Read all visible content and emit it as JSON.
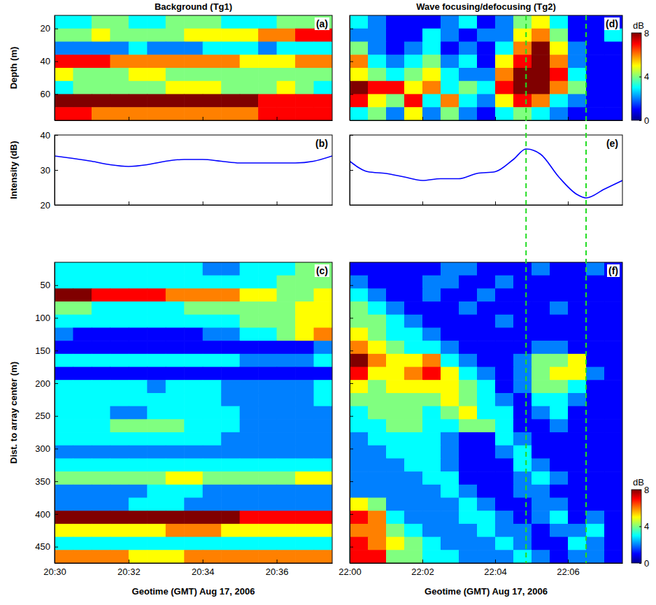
{
  "chart_data": [
    {
      "type": "heatmap",
      "title": "Background (Tg1)",
      "panel_label": "(a)",
      "ylabel": "Depth (m)",
      "x": [
        1230.25,
        1230.75,
        1231.25,
        1231.75,
        1232.25,
        1232.75,
        1233.25,
        1233.75,
        1234.25,
        1234.75,
        1235.25,
        1235.75,
        1236.25,
        1236.75,
        1237.25
      ],
      "y": [
        16,
        24,
        32,
        40,
        48,
        56,
        64,
        72
      ],
      "z": [
        [
          3,
          3,
          4,
          4,
          3,
          3,
          4,
          4,
          4,
          3,
          3,
          3,
          4,
          4,
          4
        ],
        [
          4,
          4,
          5,
          4,
          4,
          4,
          4,
          5,
          5,
          5,
          5,
          6,
          6,
          7,
          7
        ],
        [
          2,
          2,
          2,
          2,
          3,
          2,
          2,
          2,
          3,
          3,
          3,
          2,
          3,
          3,
          3
        ],
        [
          7,
          7,
          7,
          6,
          6,
          6,
          6,
          6,
          6,
          6,
          5,
          5,
          5,
          6,
          6
        ],
        [
          5,
          4,
          4,
          4,
          5,
          5,
          4,
          4,
          4,
          4,
          4,
          4,
          4,
          4,
          4
        ],
        [
          3,
          4,
          4,
          4,
          4,
          4,
          5,
          5,
          5,
          4,
          4,
          4,
          5,
          4,
          3
        ],
        [
          8,
          8,
          8,
          8,
          8,
          8,
          8,
          8,
          8,
          8,
          8,
          7,
          7,
          7,
          7
        ],
        [
          7,
          7,
          6,
          6,
          6,
          6,
          6,
          6,
          6,
          6,
          6,
          7,
          7,
          7,
          7
        ]
      ],
      "zlim": [
        0,
        8
      ],
      "xlim": [
        1230,
        1237.5
      ],
      "xticks": [
        1230,
        1232,
        1234,
        1236
      ],
      "ylim": [
        76,
        12
      ],
      "yticks": [
        20,
        40,
        60
      ],
      "tick_labels": "y"
    },
    {
      "type": "line",
      "panel_label": "(b)",
      "ylabel": "Intensity (dB)",
      "color": "#0000ff",
      "x": [
        1230,
        1230.5,
        1231,
        1231.5,
        1232,
        1232.5,
        1233,
        1233.5,
        1234,
        1234.5,
        1235,
        1235.5,
        1236,
        1236.5,
        1237,
        1237.5
      ],
      "values": [
        34,
        33.3,
        32.5,
        31.5,
        31,
        31.5,
        32.5,
        33,
        33,
        32.5,
        32,
        32,
        32,
        32,
        32.5,
        34
      ],
      "xlim": [
        1230,
        1237.5
      ],
      "xticks": [
        1230,
        1232,
        1234,
        1236
      ],
      "ylim": [
        20,
        40
      ],
      "yticks": [
        20,
        30,
        40
      ],
      "tick_labels": "y"
    },
    {
      "type": "heatmap",
      "panel_label": "(c)",
      "ylabel": "Dist. to array center (m)",
      "xlabel": "Geotime (GMT) Aug 17, 2006",
      "x": [
        1230.25,
        1230.75,
        1231.25,
        1231.75,
        1232.25,
        1232.75,
        1233.25,
        1233.75,
        1234.25,
        1234.75,
        1235.25,
        1235.75,
        1236.25,
        1236.75,
        1237.25
      ],
      "y": [
        25,
        45,
        65,
        85,
        105,
        125,
        145,
        165,
        185,
        205,
        225,
        245,
        265,
        285,
        305,
        325,
        345,
        365,
        385,
        405,
        425,
        445,
        465
      ],
      "z": [
        [
          3,
          3,
          3,
          3,
          3,
          3,
          3,
          3,
          2,
          2,
          3,
          3,
          3,
          4,
          4
        ],
        [
          3,
          3,
          3,
          3,
          3,
          3,
          3,
          3,
          3,
          3,
          3,
          3,
          4,
          4,
          4
        ],
        [
          8,
          8,
          7,
          7,
          7,
          7,
          6,
          6,
          6,
          6,
          5,
          5,
          4,
          4,
          5
        ],
        [
          4,
          4,
          3,
          3,
          3,
          3,
          3,
          4,
          4,
          4,
          4,
          4,
          4,
          5,
          5
        ],
        [
          3,
          3,
          3,
          3,
          3,
          3,
          3,
          3,
          3,
          3,
          4,
          4,
          4,
          5,
          5
        ],
        [
          2,
          1,
          1,
          1,
          1,
          1,
          1,
          1,
          2,
          2,
          3,
          3,
          4,
          5,
          6
        ],
        [
          1,
          1,
          1,
          1,
          1,
          1,
          1,
          1,
          1,
          1,
          1,
          1,
          1,
          1,
          2
        ],
        [
          3,
          3,
          3,
          3,
          3,
          3,
          3,
          3,
          3,
          3,
          2,
          2,
          2,
          2,
          3
        ],
        [
          1,
          1,
          1,
          1,
          1,
          1,
          1,
          1,
          1,
          1,
          1,
          1,
          1,
          1,
          1
        ],
        [
          3,
          3,
          3,
          3,
          3,
          2,
          3,
          3,
          3,
          2,
          2,
          2,
          2,
          2,
          3
        ],
        [
          3,
          3,
          3,
          3,
          3,
          3,
          3,
          3,
          3,
          2,
          2,
          2,
          2,
          2,
          3
        ],
        [
          3,
          3,
          3,
          2,
          2,
          3,
          3,
          3,
          3,
          3,
          2,
          2,
          2,
          2,
          2
        ],
        [
          3,
          3,
          3,
          4,
          4,
          4,
          4,
          3,
          3,
          3,
          2,
          2,
          2,
          2,
          2
        ],
        [
          3,
          3,
          3,
          3,
          3,
          3,
          3,
          3,
          3,
          2,
          2,
          2,
          2,
          2,
          2
        ],
        [
          2,
          2,
          2,
          2,
          2,
          2,
          2,
          2,
          2,
          2,
          2,
          2,
          2,
          2,
          2
        ],
        [
          3,
          3,
          3,
          3,
          3,
          3,
          3,
          3,
          3,
          3,
          3,
          3,
          3,
          3,
          3
        ],
        [
          4,
          4,
          4,
          4,
          4,
          4,
          5,
          5,
          4,
          4,
          4,
          4,
          4,
          5,
          5
        ],
        [
          2,
          2,
          2,
          2,
          2,
          3,
          3,
          3,
          2,
          2,
          2,
          2,
          2,
          2,
          2
        ],
        [
          2,
          2,
          2,
          2,
          3,
          3,
          3,
          2,
          2,
          2,
          2,
          2,
          2,
          2,
          2
        ],
        [
          8,
          8,
          8,
          8,
          8,
          8,
          8,
          8,
          8,
          8,
          7,
          7,
          7,
          7,
          7
        ],
        [
          5,
          5,
          5,
          5,
          5,
          5,
          6,
          6,
          6,
          5,
          5,
          5,
          5,
          5,
          5
        ],
        [
          3,
          3,
          3,
          3,
          3,
          3,
          3,
          3,
          3,
          3,
          3,
          3,
          3,
          3,
          3
        ],
        [
          6,
          6,
          6,
          6,
          5,
          5,
          5,
          6,
          6,
          6,
          6,
          6,
          6,
          6,
          6
        ]
      ],
      "zlim": [
        0,
        8
      ],
      "xlim": [
        1230,
        1237.5
      ],
      "xticks": [
        {
          "value": 1230,
          "label": "20:30"
        },
        {
          "value": 1232,
          "label": "20:32"
        },
        {
          "value": 1234,
          "label": "20:34"
        },
        {
          "value": 1236,
          "label": "20:36"
        }
      ],
      "ylim": [
        475,
        15
      ],
      "yticks": [
        50,
        100,
        150,
        200,
        250,
        300,
        350,
        400,
        450
      ],
      "tick_labels": true
    },
    {
      "type": "heatmap",
      "title": "Wave focusing/defocusing (Tg2)",
      "panel_label": "(d)",
      "x": [
        1320.25,
        1320.75,
        1321.25,
        1321.75,
        1322.25,
        1322.75,
        1323.25,
        1323.75,
        1324.25,
        1324.75,
        1325.25,
        1325.75,
        1326.25,
        1326.75,
        1327.25
      ],
      "y": [
        16,
        24,
        32,
        40,
        48,
        56,
        64,
        72
      ],
      "z": [
        [
          3,
          2,
          1,
          1,
          1,
          2,
          3,
          1,
          2,
          4,
          5,
          3,
          1,
          1,
          1
        ],
        [
          2,
          2,
          1,
          1,
          3,
          2,
          1,
          2,
          2,
          5,
          6,
          4,
          1,
          1,
          3
        ],
        [
          4,
          2,
          1,
          2,
          3,
          1,
          2,
          1,
          3,
          6,
          8,
          5,
          2,
          1,
          1
        ],
        [
          6,
          3,
          2,
          3,
          4,
          2,
          3,
          1,
          5,
          7,
          8,
          6,
          2,
          1,
          1
        ],
        [
          5,
          4,
          3,
          4,
          5,
          3,
          2,
          2,
          6,
          8,
          8,
          7,
          3,
          1,
          1
        ],
        [
          8,
          7,
          7,
          5,
          6,
          3,
          4,
          3,
          7,
          8,
          8,
          6,
          4,
          1,
          1
        ],
        [
          7,
          5,
          4,
          7,
          3,
          6,
          3,
          2,
          5,
          7,
          6,
          3,
          2,
          1,
          1
        ],
        [
          3,
          4,
          2,
          5,
          2,
          4,
          2,
          1,
          3,
          4,
          3,
          2,
          1,
          1,
          1
        ]
      ],
      "zlim": [
        0,
        8
      ],
      "colorbar": {
        "label": "dB",
        "ticks": [
          0,
          4,
          8
        ]
      },
      "xlim": [
        1320,
        1327.5
      ],
      "xticks": [
        1320,
        1322,
        1324,
        1326
      ],
      "ylim": [
        76,
        12
      ],
      "yticks": [
        20,
        40,
        60
      ],
      "tick_labels": false
    },
    {
      "type": "line",
      "panel_label": "(e)",
      "color": "#0000ff",
      "x": [
        1320,
        1320.5,
        1321,
        1321.5,
        1322,
        1322.5,
        1323,
        1323.5,
        1324,
        1324.5,
        1324.85,
        1325.25,
        1325.75,
        1326.25,
        1326.5,
        1327,
        1327.5
      ],
      "values": [
        32.5,
        29.5,
        29,
        28,
        27,
        27.5,
        27.5,
        29,
        29.5,
        33,
        36,
        34.5,
        28,
        23,
        22,
        24.5,
        27
      ],
      "vlines": [
        1324.85,
        1326.5
      ],
      "xlim": [
        1320,
        1327.5
      ],
      "xticks": [
        1320,
        1322,
        1324,
        1326
      ],
      "ylim": [
        20,
        40
      ],
      "yticks": [
        20,
        30,
        40
      ],
      "tick_labels": false
    },
    {
      "type": "heatmap",
      "panel_label": "(f)",
      "xlabel": "Geotime (GMT) Aug 17, 2006",
      "x": [
        1320.25,
        1320.75,
        1321.25,
        1321.75,
        1322.25,
        1322.75,
        1323.25,
        1323.75,
        1324.25,
        1324.75,
        1325.25,
        1325.75,
        1326.25,
        1326.75,
        1327.25
      ],
      "y": [
        25,
        45,
        65,
        85,
        105,
        125,
        145,
        165,
        185,
        205,
        225,
        245,
        265,
        285,
        305,
        325,
        345,
        365,
        385,
        405,
        425,
        445,
        465
      ],
      "z": [
        [
          1,
          1,
          1,
          1,
          1,
          2,
          2,
          1,
          1,
          1,
          2,
          1,
          1,
          2,
          1
        ],
        [
          2,
          1,
          1,
          1,
          2,
          2,
          1,
          1,
          2,
          1,
          1,
          1,
          1,
          1,
          1
        ],
        [
          3,
          2,
          1,
          1,
          2,
          1,
          1,
          2,
          1,
          1,
          1,
          1,
          1,
          1,
          1
        ],
        [
          4,
          3,
          2,
          1,
          1,
          1,
          2,
          1,
          1,
          1,
          1,
          2,
          1,
          1,
          1
        ],
        [
          4,
          4,
          3,
          2,
          1,
          1,
          1,
          1,
          2,
          1,
          1,
          1,
          1,
          1,
          1
        ],
        [
          5,
          4,
          3,
          3,
          2,
          1,
          1,
          1,
          1,
          1,
          1,
          1,
          1,
          1,
          1
        ],
        [
          6,
          5,
          4,
          3,
          3,
          2,
          1,
          1,
          1,
          1,
          2,
          2,
          1,
          1,
          1
        ],
        [
          8,
          6,
          5,
          5,
          6,
          3,
          2,
          1,
          1,
          2,
          4,
          4,
          5,
          1,
          1
        ],
        [
          7,
          5,
          5,
          6,
          7,
          5,
          3,
          2,
          1,
          2,
          4,
          5,
          5,
          2,
          1
        ],
        [
          5,
          4,
          5,
          5,
          5,
          5,
          4,
          3,
          1,
          2,
          4,
          4,
          3,
          1,
          1
        ],
        [
          4,
          4,
          4,
          4,
          4,
          5,
          4,
          3,
          2,
          1,
          3,
          3,
          2,
          1,
          1
        ],
        [
          3,
          4,
          4,
          4,
          3,
          4,
          5,
          3,
          3,
          1,
          2,
          3,
          1,
          1,
          1
        ],
        [
          3,
          3,
          4,
          4,
          3,
          3,
          4,
          4,
          3,
          1,
          1,
          2,
          1,
          1,
          1
        ],
        [
          2,
          3,
          3,
          3,
          3,
          2,
          1,
          1,
          3,
          2,
          1,
          1,
          1,
          1,
          1
        ],
        [
          2,
          2,
          3,
          3,
          3,
          2,
          1,
          1,
          2,
          3,
          1,
          1,
          1,
          1,
          1
        ],
        [
          2,
          2,
          2,
          3,
          3,
          2,
          1,
          1,
          1,
          3,
          2,
          1,
          1,
          1,
          1
        ],
        [
          2,
          2,
          2,
          2,
          3,
          3,
          1,
          1,
          1,
          2,
          3,
          2,
          1,
          1,
          1
        ],
        [
          2,
          2,
          2,
          2,
          2,
          3,
          2,
          1,
          1,
          2,
          2,
          1,
          1,
          1,
          1
        ],
        [
          5,
          4,
          2,
          2,
          2,
          2,
          3,
          2,
          1,
          1,
          2,
          2,
          1,
          1,
          1
        ],
        [
          7,
          6,
          3,
          2,
          2,
          2,
          3,
          3,
          2,
          1,
          2,
          3,
          1,
          2,
          1
        ],
        [
          6,
          6,
          4,
          3,
          2,
          2,
          2,
          3,
          2,
          2,
          1,
          2,
          2,
          3,
          1
        ],
        [
          7,
          6,
          5,
          4,
          3,
          2,
          2,
          2,
          3,
          2,
          1,
          1,
          3,
          2,
          1
        ],
        [
          7,
          7,
          4,
          4,
          3,
          3,
          2,
          2,
          2,
          3,
          2,
          1,
          2,
          2,
          1
        ]
      ],
      "zlim": [
        0,
        8
      ],
      "colorbar": {
        "label": "dB",
        "ticks": [
          0,
          4,
          8
        ]
      },
      "xlim": [
        1320,
        1327.5
      ],
      "xticks": [
        {
          "value": 1320,
          "label": "22:00"
        },
        {
          "value": 1322,
          "label": "22:02"
        },
        {
          "value": 1324,
          "label": "22:04"
        },
        {
          "value": 1326,
          "label": "22:06"
        }
      ],
      "ylim": [
        475,
        15
      ],
      "yticks": [
        50,
        100,
        150,
        200,
        250,
        300,
        350,
        400,
        450
      ],
      "tick_labels": "x"
    }
  ]
}
